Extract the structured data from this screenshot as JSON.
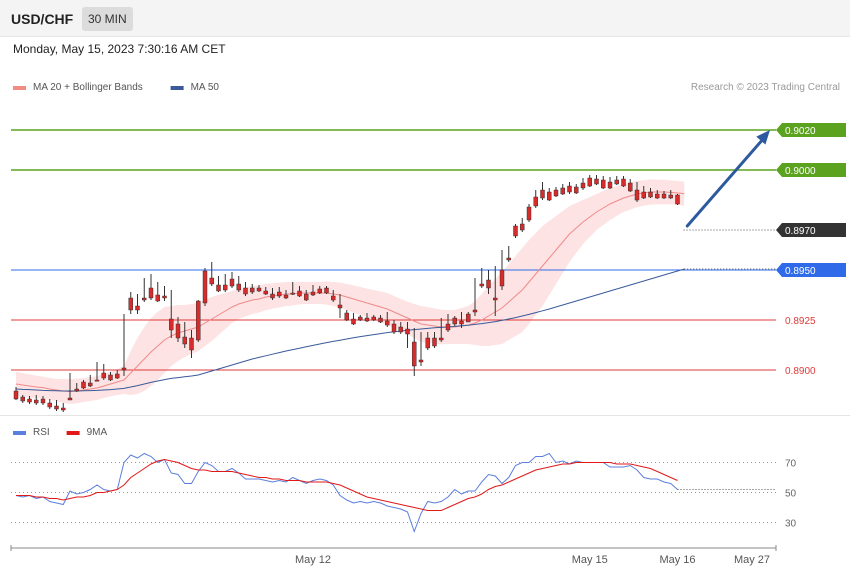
{
  "header": {
    "pair": "USD/CHF",
    "timeframe": "30 MIN"
  },
  "datetime": "Monday, May 15, 2023 7:30:16 AM CET",
  "credit": "Research © 2023 Trading Central",
  "chart_data": {
    "type": "candlestick",
    "price_panel": {
      "ylim": [
        0.888,
        0.9035
      ],
      "legend": [
        {
          "name": "MA 20 + Bollinger Bands",
          "color": "#f28b82"
        },
        {
          "name": "MA 50",
          "color": "#3a5a9a"
        }
      ],
      "levels": [
        {
          "label": "0.9020",
          "value": 0.902,
          "color": "#5ba31e",
          "kind": "resistance",
          "text_color": "#ffffff"
        },
        {
          "label": "0.9000",
          "value": 0.9,
          "color": "#5ba31e",
          "kind": "resistance",
          "text_color": "#ffffff"
        },
        {
          "label": "0.8970",
          "value": 0.897,
          "color": "#333333",
          "kind": "current",
          "text_color": "#ffffff"
        },
        {
          "label": "0.8950",
          "value": 0.895,
          "color": "#2f6be8",
          "kind": "pivot",
          "text_color": "#ffffff"
        },
        {
          "label": "0.8925",
          "value": 0.8925,
          "color": "#e03a3a",
          "kind": "support",
          "text_color": "#e03a3a"
        },
        {
          "label": "0.8900",
          "value": 0.89,
          "color": "#e03a3a",
          "kind": "support",
          "text_color": "#e03a3a"
        }
      ],
      "candles": [
        [
          0.88895,
          0.88915,
          0.88855,
          0.8885
        ],
        [
          0.88865,
          0.88875,
          0.88845,
          0.88835
        ],
        [
          0.88855,
          0.8887,
          0.8884,
          0.8883
        ],
        [
          0.8885,
          0.88875,
          0.88835,
          0.88825
        ],
        [
          0.88855,
          0.8887,
          0.88835,
          0.88825
        ],
        [
          0.88835,
          0.88855,
          0.88815,
          0.88805
        ],
        [
          0.8882,
          0.8885,
          0.88805,
          0.88795
        ],
        [
          0.8881,
          0.88835,
          0.888,
          0.8879
        ],
        [
          0.8886,
          0.88985,
          0.8885,
          0.8885
        ],
        [
          0.88905,
          0.88935,
          0.88895,
          0.8889
        ],
        [
          0.8894,
          0.8895,
          0.8891,
          0.88905
        ],
        [
          0.88935,
          0.88975,
          0.8892,
          0.88915
        ],
        [
          0.8895,
          0.8904,
          0.88945,
          0.88945
        ],
        [
          0.88985,
          0.8903,
          0.8896,
          0.8895
        ],
        [
          0.88975,
          0.8899,
          0.8895,
          0.88945
        ],
        [
          0.8898,
          0.89,
          0.8896,
          0.88955
        ],
        [
          0.8901,
          0.8928,
          0.89,
          0.8897
        ],
        [
          0.8936,
          0.8939,
          0.893,
          0.8928
        ],
        [
          0.8932,
          0.8938,
          0.893,
          0.8928
        ],
        [
          0.8936,
          0.8946,
          0.8935,
          0.8934
        ],
        [
          0.8941,
          0.8948,
          0.8936,
          0.8935
        ],
        [
          0.89375,
          0.8944,
          0.89345,
          0.8934
        ],
        [
          0.8937,
          0.8942,
          0.8936,
          0.89345
        ],
        [
          0.89255,
          0.894,
          0.892,
          0.8916
        ],
        [
          0.8923,
          0.89265,
          0.8916,
          0.8914
        ],
        [
          0.89165,
          0.8924,
          0.8913,
          0.8911
        ],
        [
          0.8916,
          0.892,
          0.891,
          0.8906
        ],
        [
          0.89345,
          0.8935,
          0.8915,
          0.8914
        ],
        [
          0.89495,
          0.8951,
          0.89335,
          0.8932
        ],
        [
          0.8946,
          0.8954,
          0.8943,
          0.8942
        ],
        [
          0.89425,
          0.8947,
          0.89395,
          0.8939
        ],
        [
          0.89425,
          0.8948,
          0.894,
          0.8939
        ],
        [
          0.89455,
          0.8949,
          0.8942,
          0.8941
        ],
        [
          0.8943,
          0.8947,
          0.894,
          0.8939
        ],
        [
          0.8941,
          0.8944,
          0.8938,
          0.8937
        ],
        [
          0.8941,
          0.8943,
          0.8939,
          0.8938
        ],
        [
          0.8941,
          0.89425,
          0.89395,
          0.8939
        ],
        [
          0.89395,
          0.89415,
          0.8938,
          0.89375
        ],
        [
          0.8938,
          0.8941,
          0.8936,
          0.8935
        ],
        [
          0.8939,
          0.89415,
          0.8937,
          0.8936
        ],
        [
          0.89375,
          0.894,
          0.8936,
          0.89355
        ],
        [
          0.89385,
          0.8944,
          0.8938,
          0.89375
        ],
        [
          0.89395,
          0.8942,
          0.8937,
          0.89365
        ],
        [
          0.8938,
          0.894,
          0.8935,
          0.89345
        ],
        [
          0.8939,
          0.89425,
          0.89375,
          0.8937
        ],
        [
          0.89405,
          0.8942,
          0.89385,
          0.8938
        ],
        [
          0.8941,
          0.8942,
          0.89385,
          0.8938
        ],
        [
          0.8937,
          0.894,
          0.8935,
          0.8934
        ],
        [
          0.89325,
          0.8938,
          0.8931,
          0.8926
        ],
        [
          0.89285,
          0.893,
          0.8925,
          0.89245
        ],
        [
          0.89255,
          0.89285,
          0.8923,
          0.89225
        ],
        [
          0.89265,
          0.89275,
          0.8925,
          0.89245
        ],
        [
          0.8926,
          0.89285,
          0.89245,
          0.8924
        ],
        [
          0.89265,
          0.89275,
          0.8925,
          0.89245
        ],
        [
          0.8926,
          0.89275,
          0.8924,
          0.89235
        ],
        [
          0.89245,
          0.8929,
          0.89225,
          0.89215
        ],
        [
          0.8923,
          0.8925,
          0.8919,
          0.8918
        ],
        [
          0.89215,
          0.8924,
          0.8919,
          0.8918
        ],
        [
          0.89205,
          0.8924,
          0.8918,
          0.8911
        ],
        [
          0.8914,
          0.8921,
          0.8902,
          0.8897
        ],
        [
          0.8905,
          0.8919,
          0.8904,
          0.8902
        ],
        [
          0.8916,
          0.8919,
          0.8911,
          0.891
        ],
        [
          0.8916,
          0.8919,
          0.8912,
          0.8911
        ],
        [
          0.8916,
          0.8926,
          0.8915,
          0.8914
        ],
        [
          0.8923,
          0.8928,
          0.892,
          0.8919
        ],
        [
          0.8926,
          0.8927,
          0.8923,
          0.8922
        ],
        [
          0.89245,
          0.8929,
          0.8923,
          0.8921
        ],
        [
          0.8928,
          0.8929,
          0.8924,
          0.8924
        ],
        [
          0.893,
          0.8946,
          0.8929,
          0.8927
        ],
        [
          0.8943,
          0.8951,
          0.8942,
          0.8941
        ],
        [
          0.8945,
          0.895,
          0.8941,
          0.8938
        ],
        [
          0.8936,
          0.8952,
          0.8935,
          0.8927
        ],
        [
          0.895,
          0.896,
          0.8942,
          0.894
        ],
        [
          0.8956,
          0.8962,
          0.8955,
          0.8954
        ],
        [
          0.8972,
          0.8973,
          0.8967,
          0.8966
        ],
        [
          0.8973,
          0.8976,
          0.897,
          0.8969
        ],
        [
          0.89815,
          0.8983,
          0.8975,
          0.8974
        ],
        [
          0.89865,
          0.899,
          0.8982,
          0.8981
        ],
        [
          0.899,
          0.8994,
          0.8986,
          0.8985
        ],
        [
          0.8989,
          0.8991,
          0.8985,
          0.89845
        ],
        [
          0.899,
          0.89915,
          0.8987,
          0.89865
        ],
        [
          0.8991,
          0.8993,
          0.8988,
          0.89875
        ],
        [
          0.8992,
          0.8994,
          0.8989,
          0.8988
        ],
        [
          0.89915,
          0.8993,
          0.89885,
          0.8988
        ],
        [
          0.89935,
          0.8996,
          0.8991,
          0.899
        ],
        [
          0.8996,
          0.89975,
          0.8992,
          0.89915
        ],
        [
          0.89955,
          0.89975,
          0.8993,
          0.89925
        ],
        [
          0.8995,
          0.8997,
          0.8991,
          0.89905
        ],
        [
          0.8994,
          0.89965,
          0.8991,
          0.89905
        ],
        [
          0.8995,
          0.8997,
          0.8993,
          0.89925
        ],
        [
          0.89955,
          0.8997,
          0.8992,
          0.89915
        ],
        [
          0.89935,
          0.89955,
          0.89895,
          0.8989
        ],
        [
          0.899,
          0.8994,
          0.8985,
          0.8984
        ],
        [
          0.8989,
          0.8992,
          0.8986,
          0.89855
        ],
        [
          0.8989,
          0.8991,
          0.89865,
          0.8986
        ],
        [
          0.8988,
          0.899,
          0.8986,
          0.89855
        ],
        [
          0.8988,
          0.89895,
          0.8986,
          0.89855
        ],
        [
          0.89875,
          0.899,
          0.8986,
          0.89855
        ],
        [
          0.89875,
          0.8988,
          0.8983,
          0.89825
        ]
      ],
      "ma20": [
        0.8893,
        0.88925,
        0.8892,
        0.88915,
        0.88912,
        0.88905,
        0.889,
        0.88895,
        0.88892,
        0.88895,
        0.889,
        0.88905,
        0.8891,
        0.8892,
        0.8893,
        0.8894,
        0.8895,
        0.88985,
        0.8902,
        0.89055,
        0.8909,
        0.8912,
        0.8915,
        0.8917,
        0.89185,
        0.89195,
        0.89205,
        0.89215,
        0.89235,
        0.89255,
        0.89275,
        0.89295,
        0.89315,
        0.8933,
        0.8934,
        0.8935,
        0.89355,
        0.89365,
        0.8937,
        0.89375,
        0.8938,
        0.8938,
        0.89385,
        0.89385,
        0.89385,
        0.89385,
        0.89385,
        0.8938,
        0.89375,
        0.89365,
        0.89355,
        0.89345,
        0.89335,
        0.89325,
        0.89315,
        0.89305,
        0.8929,
        0.89275,
        0.8926,
        0.89245,
        0.8923,
        0.89225,
        0.8922,
        0.89215,
        0.89215,
        0.89215,
        0.8922,
        0.89225,
        0.89235,
        0.8925,
        0.8927,
        0.8929,
        0.8931,
        0.8934,
        0.8937,
        0.894,
        0.8944,
        0.8948,
        0.8952,
        0.8956,
        0.896,
        0.8964,
        0.8968,
        0.8971,
        0.8974,
        0.89765,
        0.8979,
        0.8981,
        0.8983,
        0.89845,
        0.8986,
        0.8987,
        0.8988,
        0.89885,
        0.8989,
        0.8989,
        0.8989,
        0.89888,
        0.89885,
        0.89882
      ],
      "ma50": [
        0.88905,
        0.88903,
        0.88902,
        0.889,
        0.88898,
        0.88897,
        0.88896,
        0.88895,
        0.88895,
        0.88895,
        0.88896,
        0.88897,
        0.88898,
        0.889,
        0.88902,
        0.88905,
        0.88908,
        0.88915,
        0.88922,
        0.8893,
        0.88938,
        0.88945,
        0.88952,
        0.88958,
        0.88962,
        0.88966,
        0.8897,
        0.88975,
        0.88985,
        0.88995,
        0.89005,
        0.89015,
        0.89025,
        0.89035,
        0.89045,
        0.89055,
        0.89063,
        0.89071,
        0.89079,
        0.89087,
        0.89095,
        0.89102,
        0.89109,
        0.89116,
        0.89123,
        0.8913,
        0.89137,
        0.89143,
        0.89149,
        0.89155,
        0.89161,
        0.89167,
        0.89172,
        0.89177,
        0.89182,
        0.89187,
        0.89191,
        0.89195,
        0.89199,
        0.89202,
        0.89205,
        0.89208,
        0.89211,
        0.89213,
        0.89215,
        0.89218,
        0.89221,
        0.89224,
        0.89228,
        0.89232,
        0.89237,
        0.89242,
        0.89248,
        0.89255,
        0.89262,
        0.8927,
        0.89278,
        0.89287,
        0.89296,
        0.89305,
        0.89315,
        0.89325,
        0.89335,
        0.89345,
        0.89355,
        0.89365,
        0.89375,
        0.89385,
        0.89395,
        0.89405,
        0.89415,
        0.89425,
        0.89435,
        0.89445,
        0.89455,
        0.89465,
        0.89475,
        0.89485,
        0.89495,
        0.89505
      ],
      "bb_half_width": [
        0.0006,
        0.0006,
        0.00058,
        0.00057,
        0.00055,
        0.00055,
        0.00055,
        0.0006,
        0.00062,
        0.00062,
        0.0006,
        0.0006,
        0.0006,
        0.0006,
        0.00062,
        0.00065,
        0.0007,
        0.0011,
        0.0014,
        0.0016,
        0.0017,
        0.0017,
        0.00165,
        0.0015,
        0.0014,
        0.0013,
        0.00125,
        0.0012,
        0.00115,
        0.0011,
        0.001,
        0.0009,
        0.0008,
        0.00075,
        0.00072,
        0.0007,
        0.00068,
        0.00066,
        0.00064,
        0.00062,
        0.0006,
        0.00058,
        0.00056,
        0.00055,
        0.00055,
        0.00055,
        0.00058,
        0.0006,
        0.00062,
        0.00065,
        0.00068,
        0.0007,
        0.00072,
        0.00075,
        0.00078,
        0.0008,
        0.0008,
        0.0008,
        0.00082,
        0.00085,
        0.0009,
        0.0009,
        0.00088,
        0.00086,
        0.00085,
        0.00085,
        0.0009,
        0.00095,
        0.0011,
        0.0013,
        0.0015,
        0.00165,
        0.0018,
        0.0019,
        0.002,
        0.0021,
        0.0021,
        0.00205,
        0.002,
        0.00185,
        0.0017,
        0.00155,
        0.0014,
        0.00125,
        0.0011,
        0.001,
        0.0009,
        0.00085,
        0.0008,
        0.00075,
        0.0007,
        0.00068,
        0.00066,
        0.00064,
        0.00063,
        0.00062,
        0.00061,
        0.0006,
        0.0006,
        0.0006
      ],
      "projection": {
        "from_price": 0.8972,
        "to_price": 0.902
      }
    },
    "rsi_panel": {
      "ylim": [
        15,
        85
      ],
      "legend": [
        {
          "name": "RSI",
          "color": "#5b7fde"
        },
        {
          "name": "9MA",
          "color": "#e01818"
        }
      ],
      "levels": [
        {
          "label": "70",
          "value": 70
        },
        {
          "label": "50",
          "value": 50
        },
        {
          "label": "30",
          "value": 30
        }
      ],
      "rsi": [
        48,
        47,
        48,
        46,
        47,
        44,
        43,
        42,
        51,
        49,
        50,
        52,
        55,
        52,
        51,
        52,
        70,
        75,
        73,
        76,
        74,
        70,
        72,
        63,
        62,
        56,
        56,
        64,
        70,
        68,
        64,
        64,
        66,
        63,
        59,
        59,
        59,
        58,
        57,
        58,
        57,
        60,
        58,
        56,
        58,
        59,
        58,
        55,
        48,
        45,
        43,
        44,
        43,
        44,
        43,
        41,
        40,
        39,
        37,
        24,
        36,
        44,
        43,
        44,
        47,
        52,
        49,
        51,
        51,
        57,
        62,
        61,
        56,
        60,
        68,
        70,
        70,
        74,
        74,
        76,
        70,
        71,
        69,
        71,
        70,
        70,
        70,
        70,
        67,
        67,
        67,
        68,
        65,
        60,
        59,
        59,
        57,
        56,
        52
      ],
      "rsi_ma": [
        48,
        48,
        48,
        47,
        47,
        46,
        46,
        45,
        46,
        47,
        47,
        48,
        50,
        50,
        51,
        52,
        55,
        60,
        63,
        66,
        69,
        71,
        72,
        71,
        70,
        68,
        66,
        65,
        65,
        64,
        64,
        64,
        64,
        63,
        62,
        61,
        60,
        60,
        59,
        59,
        58,
        58,
        58,
        57,
        57,
        57,
        57,
        56,
        55,
        53,
        51,
        49,
        47,
        46,
        45,
        44,
        43,
        42,
        41,
        40,
        39,
        38,
        38,
        38,
        40,
        42,
        44,
        46,
        47,
        49,
        52,
        54,
        55,
        57,
        59,
        61,
        63,
        65,
        66,
        67,
        68,
        69,
        69,
        70,
        70,
        70,
        70,
        70,
        70,
        69,
        69,
        69,
        68,
        67,
        66,
        64,
        62,
        60,
        58
      ]
    },
    "x_axis": {
      "labels": [
        {
          "label": "May 12",
          "index": 44
        },
        {
          "label": "May 15",
          "index": 85
        },
        {
          "label": "May 16",
          "index": 98
        },
        {
          "label": "May 27",
          "index": 110
        }
      ]
    }
  }
}
